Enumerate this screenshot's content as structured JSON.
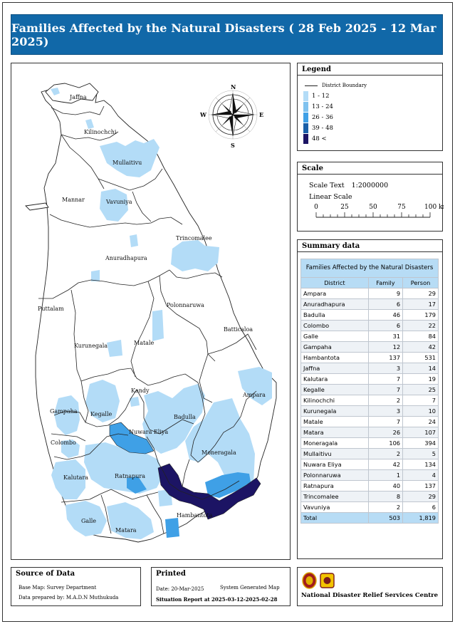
{
  "title": "Families Affected by the Natural Disasters ( 28 Feb 2025 - 12 Mar 2025)",
  "legend": {
    "heading": "Legend",
    "boundary_label": "District Boundary",
    "classes": [
      {
        "label": "1 - 12",
        "color": "#b3dcf7"
      },
      {
        "label": "13 - 24",
        "color": "#7fc2ef"
      },
      {
        "label": "26 - 36",
        "color": "#3fa0e6"
      },
      {
        "label": "39 - 48",
        "color": "#1a5fa8"
      },
      {
        "label": "48 <",
        "color": "#1c1464"
      }
    ]
  },
  "scale": {
    "heading": "Scale",
    "scale_text_label": "Scale Text",
    "scale_text_value": "1:2000000",
    "linear_label": "Linear Scale",
    "ticks": [
      "0",
      "25",
      "50",
      "75",
      "100 km"
    ]
  },
  "compass": {
    "n": "N",
    "s": "S",
    "e": "E",
    "w": "W"
  },
  "districts": {
    "jaffna": "Jaffna",
    "kilinochchi": "Kilinochchi",
    "mullaitivu": "Mullaitivu",
    "mannar": "Mannar",
    "vavuniya": "Vavuniya",
    "trincomalee": "Trincomalee",
    "anuradhapura": "Anuradhapura",
    "puttalam": "Puttalam",
    "polonnaruwa": "Polonnaruwa",
    "batticaloa": "Batticaloa",
    "kurunegala": "Kurunegala",
    "matale": "Matale",
    "kandy": "Kandy",
    "ampara": "Ampara",
    "gampaha": "Gampaha",
    "kegalle": "Kegalle",
    "badulla": "Badulla",
    "nuwara_eliya": "Nuwara Eliya",
    "colombo": "Colombo",
    "moneragala": "Moneragala",
    "kalutara": "Kalutara",
    "ratnapura": "Ratnapura",
    "hambantota": "Hambantota",
    "galle": "Galle",
    "matara": "Matara"
  },
  "summary": {
    "heading": "Summary data",
    "caption": "Families Affected by the Natural Disasters",
    "columns": [
      "District",
      "Family",
      "Person"
    ],
    "rows": [
      [
        "Ampara",
        "9",
        "29"
      ],
      [
        "Anuradhapura",
        "6",
        "17"
      ],
      [
        "Badulla",
        "46",
        "179"
      ],
      [
        "Colombo",
        "6",
        "22"
      ],
      [
        "Galle",
        "31",
        "84"
      ],
      [
        "Gampaha",
        "12",
        "42"
      ],
      [
        "Hambantota",
        "137",
        "531"
      ],
      [
        "Jaffna",
        "3",
        "14"
      ],
      [
        "Kalutara",
        "7",
        "19"
      ],
      [
        "Kegalle",
        "7",
        "25"
      ],
      [
        "Kilinochchi",
        "2",
        "7"
      ],
      [
        "Kurunegala",
        "3",
        "10"
      ],
      [
        "Matale",
        "7",
        "24"
      ],
      [
        "Matara",
        "26",
        "107"
      ],
      [
        "Moneragala",
        "106",
        "394"
      ],
      [
        "Mullaitivu",
        "2",
        "5"
      ],
      [
        "Nuwara Eliya",
        "42",
        "134"
      ],
      [
        "Polonnaruwa",
        "1",
        "4"
      ],
      [
        "Ratnapura",
        "40",
        "137"
      ],
      [
        "Trincomalee",
        "8",
        "29"
      ],
      [
        "Vavuniya",
        "2",
        "6"
      ]
    ],
    "total": [
      "Total",
      "503",
      "1,819"
    ]
  },
  "source": {
    "heading": "Source of Data",
    "base_map": "Base Map: Survey Department",
    "prepared_by": "Data prepared by: M.A.D.N Muthukuda"
  },
  "printed": {
    "heading": "Printed",
    "date": "Date: 20-Mar-2025",
    "system": "System Generated Map",
    "report": "Situation Report at 2025-03-12-2025-02-28"
  },
  "org": {
    "name": "National Disaster Relief Services Centre"
  },
  "colors": {
    "title_bg": "#1168a8",
    "water": "#ffffff"
  }
}
